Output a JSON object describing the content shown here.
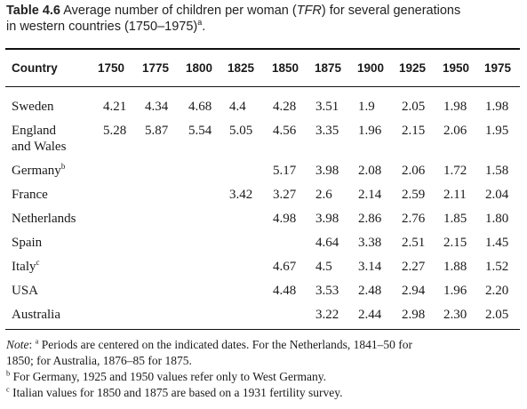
{
  "caption": {
    "label": "Table 4.6",
    "text_before": "Average number of children per woman (",
    "abbr": "TFR",
    "text_after": ") for several generations",
    "line2": "in western countries (1750–1975)",
    "footnote_mark": "a",
    "end": "."
  },
  "table": {
    "country_header": "Country",
    "years": [
      "1750",
      "1775",
      "1800",
      "1825",
      "1850",
      "1875",
      "1900",
      "1925",
      "1950",
      "1975"
    ],
    "rows": [
      {
        "country": "Sweden",
        "country_line2": "",
        "mark": "",
        "values": [
          "4.21",
          "4.34",
          "4.68",
          "4.4",
          "4.28",
          "3.51",
          "1.9",
          "2.05",
          "1.98",
          "1.98"
        ]
      },
      {
        "country": "England",
        "country_line2": "and Wales",
        "mark": "",
        "values": [
          "5.28",
          "5.87",
          "5.54",
          "5.05",
          "4.56",
          "3.35",
          "1.96",
          "2.15",
          "2.06",
          "1.95"
        ]
      },
      {
        "country": "Germany",
        "country_line2": "",
        "mark": "b",
        "values": [
          "",
          "",
          "",
          "",
          "5.17",
          "3.98",
          "2.08",
          "2.06",
          "1.72",
          "1.58"
        ]
      },
      {
        "country": "France",
        "country_line2": "",
        "mark": "",
        "values": [
          "",
          "",
          "",
          "3.42",
          "3.27",
          "2.6",
          "2.14",
          "2.59",
          "2.11",
          "2.04"
        ]
      },
      {
        "country": "Netherlands",
        "country_line2": "",
        "mark": "",
        "values": [
          "",
          "",
          "",
          "",
          "4.98",
          "3.98",
          "2.86",
          "2.76",
          "1.85",
          "1.80"
        ]
      },
      {
        "country": "Spain",
        "country_line2": "",
        "mark": "",
        "values": [
          "",
          "",
          "",
          "",
          "",
          "4.64",
          "3.38",
          "2.51",
          "2.15",
          "1.45"
        ]
      },
      {
        "country": "Italy",
        "country_line2": "",
        "mark": "c",
        "values": [
          "",
          "",
          "",
          "",
          "4.67",
          "4.5",
          "3.14",
          "2.27",
          "1.88",
          "1.52"
        ]
      },
      {
        "country": "USA",
        "country_line2": "",
        "mark": "",
        "values": [
          "",
          "",
          "",
          "",
          "4.48",
          "3.53",
          "2.48",
          "2.94",
          "1.96",
          "2.20"
        ]
      },
      {
        "country": "Australia",
        "country_line2": "",
        "mark": "",
        "values": [
          "",
          "",
          "",
          "",
          "",
          "3.22",
          "2.44",
          "2.98",
          "2.30",
          "2.05"
        ]
      }
    ]
  },
  "notes": {
    "note_label": "Note",
    "note_colon": ":",
    "a_mark": "a",
    "a_text_1": " Periods are centered on the indicated dates. For the Netherlands, 1841–50 for",
    "a_text_2": "1850; for Australia, 1876–85 for 1875.",
    "b_mark": "b",
    "b_text": " For Germany, 1925 and 1950 values refer only to West Germany.",
    "c_mark": "c",
    "c_text": " Italian values for 1850 and 1875 are based on a 1931 fertility survey."
  }
}
